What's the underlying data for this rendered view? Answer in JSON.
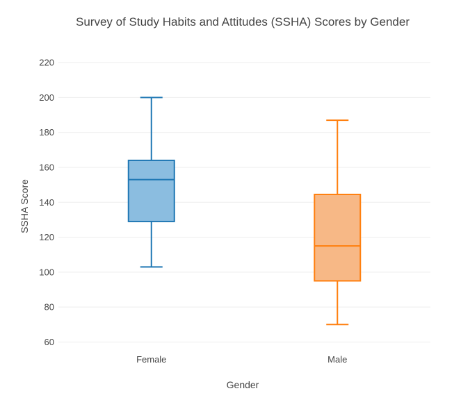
{
  "chart_data": {
    "type": "box",
    "title": "Survey of Study Habits and Attitudes (SSHA) Scores by Gender",
    "xlabel": "Gender",
    "ylabel": "SSHA Score",
    "ylim": [
      57,
      226
    ],
    "yticks": [
      60,
      80,
      100,
      120,
      140,
      160,
      180,
      200,
      220
    ],
    "grid": true,
    "categories": [
      "Female",
      "Male"
    ],
    "series": [
      {
        "category": "Female",
        "color": "#1f77b4",
        "fill": "#8bbde0",
        "min": 103,
        "q1": 129,
        "median": 153,
        "q3": 164,
        "max": 200
      },
      {
        "category": "Male",
        "color": "#ff7f0e",
        "fill": "#f7b886",
        "min": 70,
        "q1": 95,
        "median": 115,
        "q3": 144.5,
        "max": 187
      }
    ]
  }
}
